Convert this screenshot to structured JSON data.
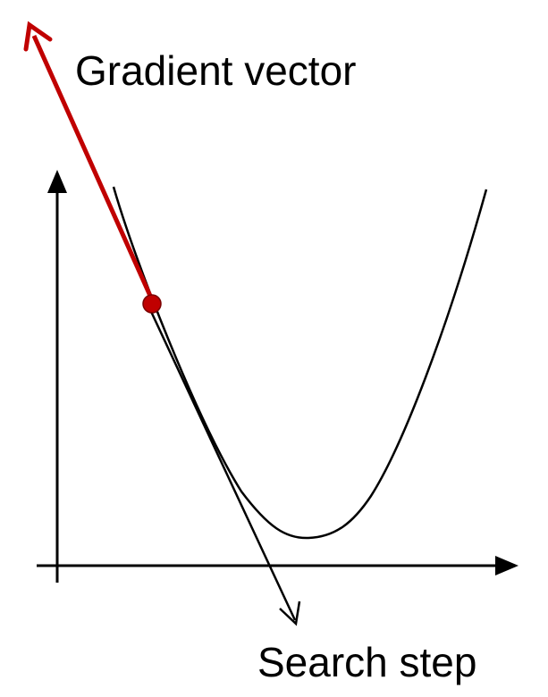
{
  "labels": {
    "gradient": "Gradient vector",
    "search": "Search step"
  },
  "colors": {
    "gradient_arrow": "#c00000",
    "gradient_point": "#c00000",
    "curve": "#000000",
    "axes": "#000000",
    "search_arrow": "#000000"
  }
}
